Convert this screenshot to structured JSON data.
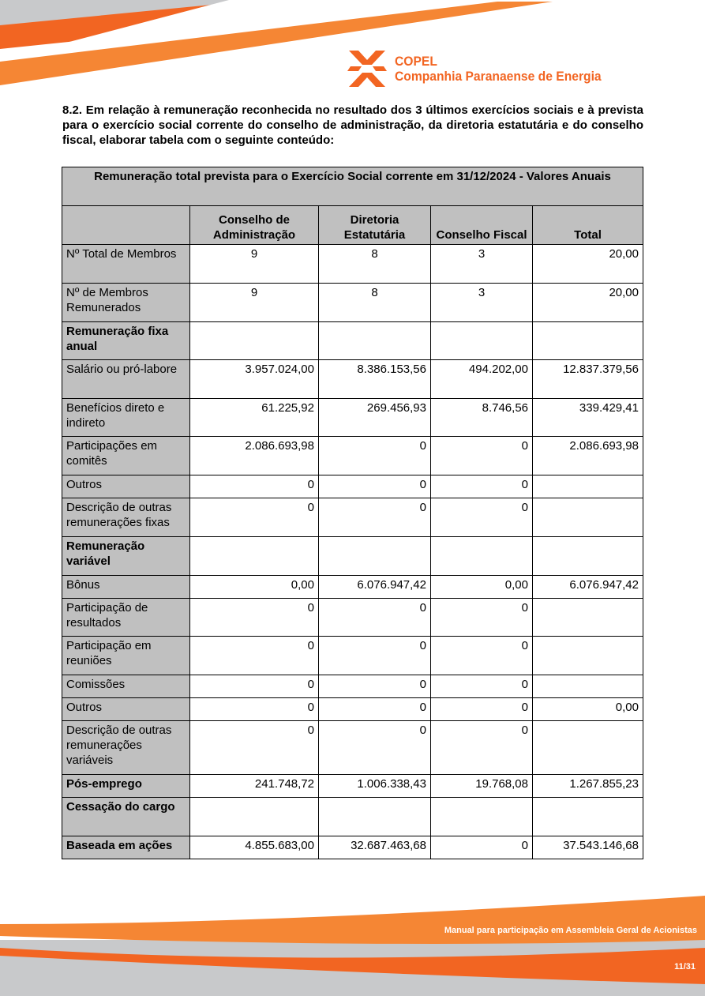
{
  "brand": {
    "name": "COPEL",
    "full_name": "Companhia Paranaense de Energia",
    "orange": "#f26522",
    "light_orange": "#f58634",
    "gray": "#c8c9cb"
  },
  "intro": "8.2. Em relação à remuneração reconhecida no resultado dos 3 últimos exercícios sociais e à prevista para o exercício social corrente do conselho de administração, da diretoria estatutária e do conselho fiscal, elaborar tabela com o seguinte conteúdo:",
  "table": {
    "title": "Remuneração total prevista para o Exercício Social corrente em 31/12/2024 - Valores Anuais",
    "headers": [
      "",
      "Conselho de Administração",
      "Diretoria Estatutária",
      "Conselho Fiscal",
      "Total"
    ],
    "rows": [
      {
        "label": "Nº Total de Membros",
        "values": [
          "9",
          "8",
          "3",
          "20,00"
        ]
      },
      {
        "label": "Nº de Membros Remunerados",
        "values": [
          "9",
          "8",
          "3",
          "20,00"
        ]
      },
      {
        "label": "Remuneração fixa anual",
        "bold": true,
        "values": [
          "",
          "",
          "",
          ""
        ]
      },
      {
        "label": "Salário ou pró-labore",
        "values": [
          "3.957.024,00",
          "8.386.153,56",
          "494.202,00",
          "12.837.379,56"
        ]
      },
      {
        "label": "Benefícios direto e indireto",
        "values": [
          "61.225,92",
          "269.456,93",
          "8.746,56",
          "339.429,41"
        ]
      },
      {
        "label": "Participações em comitês",
        "values": [
          "2.086.693,98",
          "0",
          "0",
          "2.086.693,98"
        ]
      },
      {
        "label": "Outros",
        "values": [
          "0",
          "0",
          "0",
          ""
        ]
      },
      {
        "label": "Descrição de outras remunerações fixas",
        "values": [
          "0",
          "0",
          "0",
          ""
        ]
      },
      {
        "label": "Remuneração variável",
        "bold": true,
        "values": [
          "",
          "",
          "",
          ""
        ]
      },
      {
        "label": "Bônus",
        "values": [
          "0,00",
          "6.076.947,42",
          "0,00",
          "6.076.947,42"
        ]
      },
      {
        "label": "Participação de resultados",
        "values": [
          "0",
          "0",
          "0",
          ""
        ]
      },
      {
        "label": "Participação em reuniões",
        "values": [
          "0",
          "0",
          "0",
          ""
        ]
      },
      {
        "label": "Comissões",
        "values": [
          "0",
          "0",
          "0",
          ""
        ]
      },
      {
        "label": "Outros",
        "values": [
          "0",
          "0",
          "0",
          "0,00"
        ]
      },
      {
        "label": "Descrição de outras remunerações variáveis",
        "values": [
          "0",
          "0",
          "0",
          ""
        ]
      },
      {
        "label": "Pós-emprego",
        "bold": true,
        "values": [
          "241.748,72",
          "1.006.338,43",
          "19.768,08",
          "1.267.855,23"
        ]
      },
      {
        "label": "Cessação do cargo",
        "bold": true,
        "values": [
          "",
          "",
          "",
          ""
        ]
      },
      {
        "label": "Baseada em ações",
        "bold": true,
        "values": [
          "4.855.683,00",
          "32.687.463,68",
          "0",
          "37.543.146,68"
        ]
      }
    ]
  },
  "footer": {
    "text": "Manual para participação em Assembleia Geral de Acionistas",
    "page": "11/31"
  }
}
